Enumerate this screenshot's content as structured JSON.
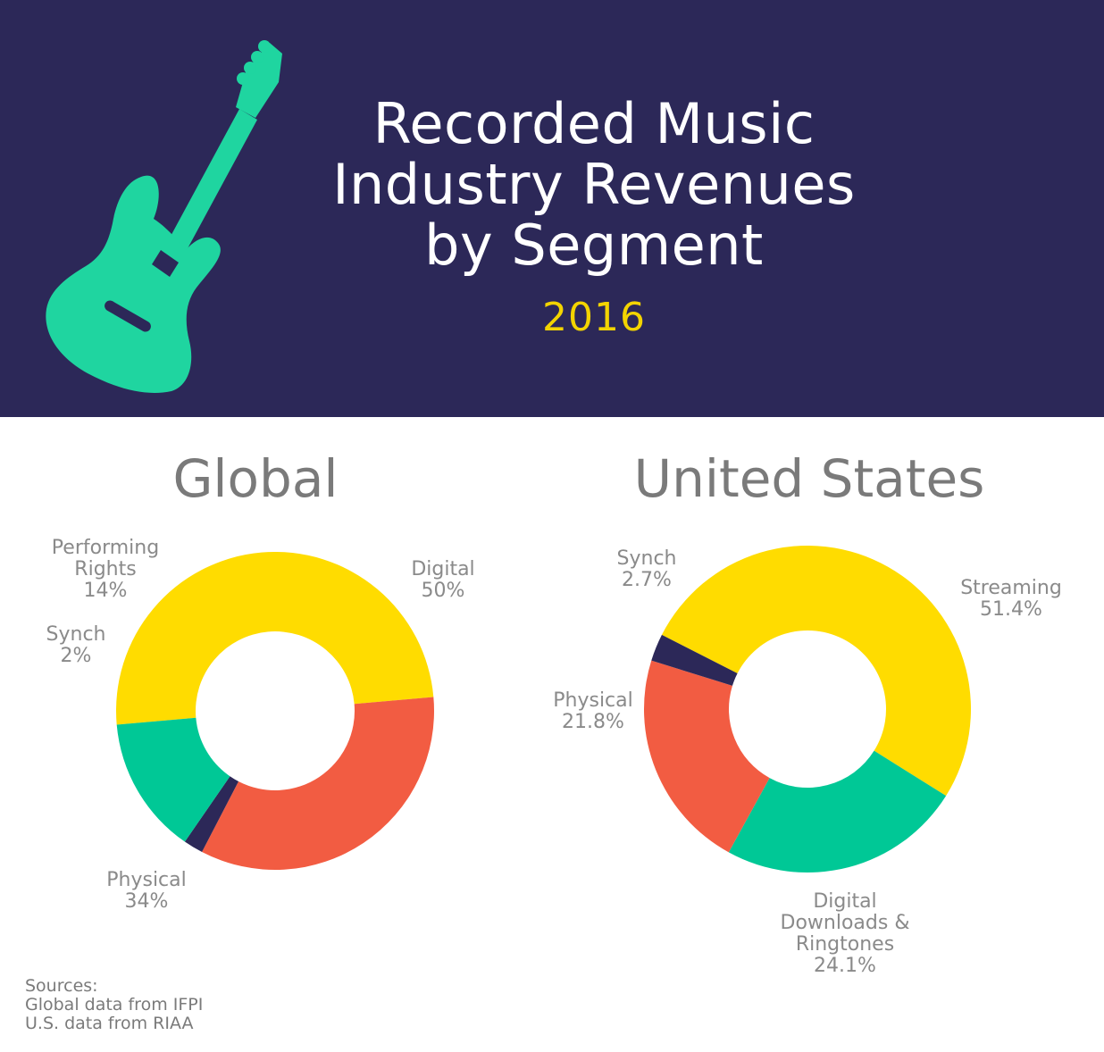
{
  "header": {
    "title_line1": "Recorded Music",
    "title_line2": "Industry Revenues",
    "title_line3": "by Segment",
    "year": "2016"
  },
  "colors": {
    "background_header": "#2c2858",
    "yellow": "#ffdc00",
    "teal": "#00c896",
    "red": "#f25c42",
    "navy": "#2c2858",
    "year": "#f3d400",
    "guitar": "#1fd5a0"
  },
  "chart_data": [
    {
      "type": "pie",
      "title": "Global",
      "slices": [
        {
          "label": "Digital",
          "value": 50,
          "value_label": "50%",
          "color": "#ffdc00"
        },
        {
          "label": "Physical",
          "value": 34,
          "value_label": "34%",
          "color": "#f25c42"
        },
        {
          "label": "Synch",
          "value": 2,
          "value_label": "2%",
          "color": "#2c2858"
        },
        {
          "label": "Performing Rights",
          "value": 14,
          "value_label": "14%",
          "color": "#00c896"
        }
      ]
    },
    {
      "type": "pie",
      "title": "United States",
      "slices": [
        {
          "label": "Streaming",
          "value": 51.4,
          "value_label": "51.4%",
          "color": "#ffdc00"
        },
        {
          "label": "Digital Downloads & Ringtones",
          "value": 24.1,
          "value_label": "24.1%",
          "color": "#00c896"
        },
        {
          "label": "Physical",
          "value": 21.8,
          "value_label": "21.8%",
          "color": "#f25c42"
        },
        {
          "label": "Synch",
          "value": 2.7,
          "value_label": "2.7%",
          "color": "#2c2858"
        }
      ]
    }
  ],
  "labels": {
    "global": {
      "digital_1": "Digital",
      "digital_2": "50%",
      "performing_1": "Performing",
      "performing_2": "Rights",
      "performing_3": "14%",
      "synch_1": "Synch",
      "synch_2": "2%",
      "physical_1": "Physical",
      "physical_2": "34%"
    },
    "us": {
      "synch_1": "Synch",
      "synch_2": "2.7%",
      "streaming_1": "Streaming",
      "streaming_2": "51.4%",
      "physical_1": "Physical",
      "physical_2": "21.8%",
      "downloads_1": "Digital",
      "downloads_2": "Downloads &",
      "downloads_3": "Ringtones",
      "downloads_4": "24.1%"
    }
  },
  "sources": {
    "line1": "Sources:",
    "line2": "Global data from IFPI",
    "line3": "U.S. data from RIAA"
  }
}
